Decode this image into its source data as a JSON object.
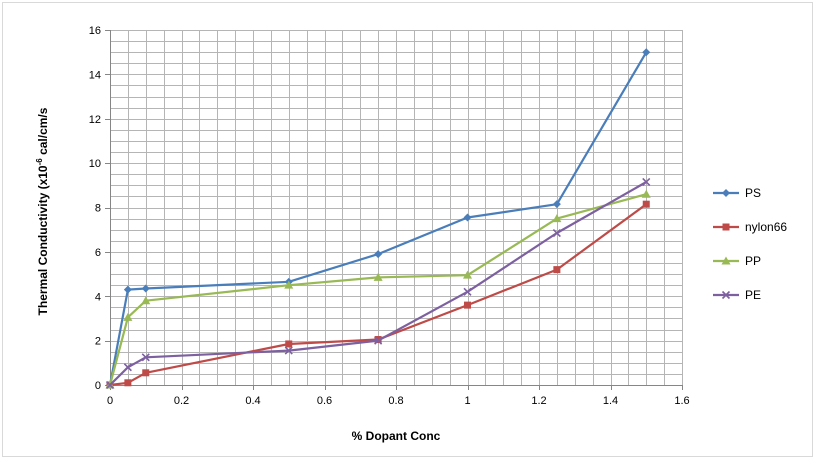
{
  "chart_data": {
    "type": "line",
    "title": "",
    "xlabel": "% Dopant Conc",
    "ylabel": {
      "prefix": "Thermal Conductivity (x10",
      "superscript": "-6",
      "suffix": " cal/cm/s"
    },
    "xlim": [
      0,
      1.6
    ],
    "ylim": [
      0,
      16
    ],
    "x_major_ticks": [
      0,
      0.2,
      0.4,
      0.6,
      0.8,
      1,
      1.2,
      1.4,
      1.6
    ],
    "x_tick_labels": [
      "0",
      "0.2",
      "0.4",
      "0.6",
      "0.8",
      "1",
      "1.2",
      "1.4",
      "1.6"
    ],
    "y_major_ticks": [
      0,
      2,
      4,
      6,
      8,
      10,
      12,
      14,
      16
    ],
    "y_tick_labels": [
      "0",
      "2",
      "4",
      "6",
      "8",
      "10",
      "12",
      "14",
      "16"
    ],
    "x_minor_step": 0.05,
    "y_minor_step": 0.5,
    "grid": true,
    "legend_position": "right",
    "series": [
      {
        "name": "PS",
        "color": "#4a7ebb",
        "marker": "diamond",
        "x": [
          0,
          0.05,
          0.1,
          0.5,
          0.75,
          1,
          1.25,
          1.5
        ],
        "y": [
          0,
          4.3,
          4.35,
          4.65,
          5.9,
          7.55,
          8.15,
          15.0
        ]
      },
      {
        "name": "nylon66",
        "color": "#be4b48",
        "marker": "square",
        "x": [
          0,
          0.05,
          0.1,
          0.5,
          0.75,
          1,
          1.25,
          1.5
        ],
        "y": [
          0,
          0.1,
          0.55,
          1.85,
          2.05,
          3.6,
          5.2,
          8.15
        ]
      },
      {
        "name": "PP",
        "color": "#98b954",
        "marker": "triangle",
        "x": [
          0,
          0.05,
          0.1,
          0.5,
          0.75,
          1,
          1.25,
          1.5
        ],
        "y": [
          0,
          3.05,
          3.8,
          4.5,
          4.85,
          4.95,
          7.5,
          8.6
        ]
      },
      {
        "name": "PE",
        "color": "#7d60a0",
        "marker": "x",
        "x": [
          0,
          0.05,
          0.1,
          0.5,
          0.75,
          1,
          1.25,
          1.5
        ],
        "y": [
          0,
          0.8,
          1.25,
          1.55,
          2.0,
          4.2,
          6.85,
          9.15
        ]
      }
    ]
  }
}
